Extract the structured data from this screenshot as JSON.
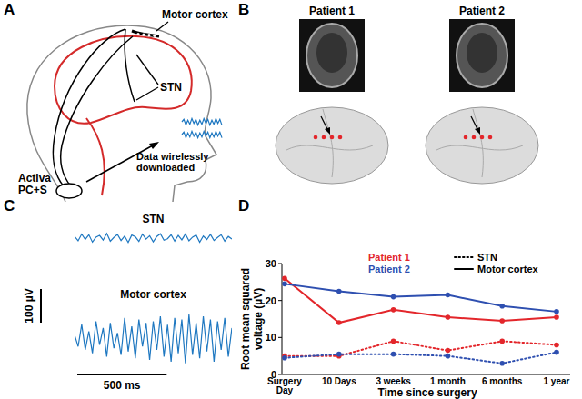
{
  "panel_labels": [
    "A",
    "B",
    "C",
    "D"
  ],
  "schematic": {
    "labels": [
      "Motor cortex",
      "STN",
      "Data wirelessly downloaded",
      "Activa PC+S"
    ]
  },
  "imaging": {
    "patients": [
      "Patient 1",
      "Patient 2"
    ]
  },
  "chart_data": [
    {
      "type": "line",
      "tick_labels": false,
      "x": [
        0,
        20,
        40,
        60,
        80,
        100,
        120,
        140,
        160,
        180,
        200,
        220,
        240,
        260,
        280,
        300,
        320,
        340,
        360,
        380,
        400,
        420,
        440,
        460,
        480,
        500,
        520,
        540,
        560,
        580,
        600,
        620,
        640,
        660,
        680,
        700,
        720,
        740,
        760,
        780,
        800,
        820,
        840,
        860,
        880
      ],
      "xlim": [
        0,
        880
      ],
      "ylim": [
        -100,
        100
      ],
      "series": [
        {
          "name": "STN",
          "color": "#1f78c1",
          "values": [
            5,
            -8,
            12,
            -4,
            10,
            -12,
            3,
            8,
            -6,
            14,
            -9,
            2,
            11,
            -7,
            6,
            -13,
            9,
            4,
            -10,
            12,
            -3,
            7,
            -11,
            5,
            13,
            -6,
            -2,
            10,
            -9,
            8,
            -5,
            12,
            -8,
            3,
            9,
            -12,
            6,
            -4,
            11,
            -7,
            2,
            10,
            -9,
            5,
            -3
          ]
        },
        {
          "name": "Motor cortex",
          "color": "#1f78c1",
          "values": [
            10,
            -25,
            40,
            -35,
            20,
            -45,
            50,
            -20,
            30,
            -55,
            45,
            -30,
            15,
            -50,
            60,
            -40,
            35,
            -60,
            55,
            -25,
            45,
            -65,
            50,
            -35,
            65,
            -55,
            40,
            -70,
            60,
            -45,
            55,
            -75,
            70,
            -50,
            45,
            -60,
            65,
            -40,
            55,
            -70,
            50,
            -35,
            60,
            -55,
            30
          ]
        }
      ],
      "scale_bar": {
        "x": 500,
        "x_label": "500 ms",
        "y": 100,
        "y_label": "100 µV"
      }
    },
    {
      "type": "line",
      "ylabel": "Root mean squared voltage (µV)",
      "xlabel": "Time since surgery",
      "categories": [
        "Surgery Day",
        "10 Days",
        "3 weeks",
        "1 month",
        "6 months",
        "1 year"
      ],
      "ylim": [
        0,
        30
      ],
      "yticks": [
        0,
        10,
        20,
        30
      ],
      "marker": "circle",
      "series": [
        {
          "name": "Patient 1",
          "color": "#e3262b",
          "line_style": "dotted",
          "values": [
            5,
            5,
            9,
            6.5,
            9,
            8
          ]
        },
        {
          "name": "Patient 2",
          "color": "#2e4fb0",
          "line_style": "dotted",
          "values": [
            4.5,
            5.5,
            5.5,
            5,
            3,
            6
          ]
        },
        {
          "name": "Patient 1",
          "color": "#e3262b",
          "line_style": "solid",
          "values": [
            26,
            14,
            17.5,
            15.5,
            14.5,
            15.5
          ]
        },
        {
          "name": "Patient 2",
          "color": "#2e4fb0",
          "line_style": "solid",
          "values": [
            24.5,
            22.5,
            21,
            21.5,
            18.5,
            17
          ]
        }
      ],
      "line_style_legend": [
        {
          "label": "STN",
          "line_style": "dotted"
        },
        {
          "label": "Motor cortex",
          "line_style": "solid"
        }
      ]
    }
  ]
}
